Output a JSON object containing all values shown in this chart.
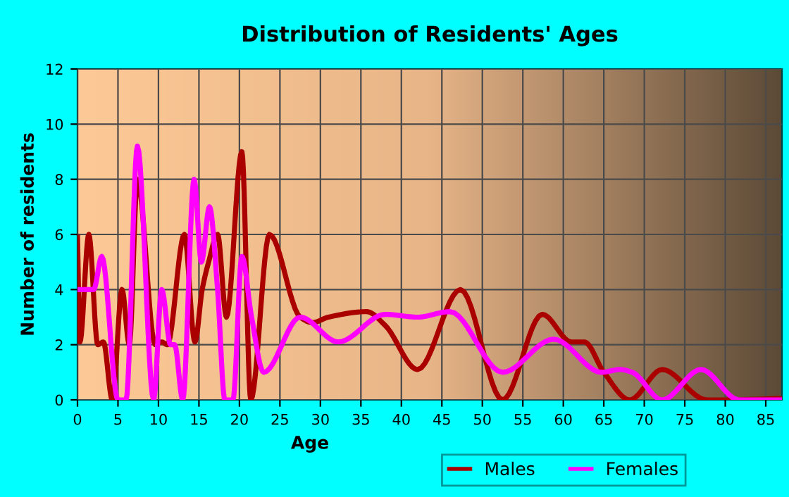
{
  "chart_data": {
    "type": "line",
    "title": "Distribution of Residents' Ages",
    "xlabel": "Age",
    "ylabel": "Number of residents",
    "xlim": [
      0,
      87
    ],
    "xticks": [
      0,
      5,
      10,
      15,
      20,
      25,
      30,
      35,
      40,
      45,
      50,
      55,
      60,
      65,
      70,
      75,
      80,
      85
    ],
    "ylim": [
      0,
      12
    ],
    "yticks": [
      0,
      2,
      4,
      6,
      8,
      10,
      12
    ],
    "grid": true,
    "legend": "bottom right",
    "series": [
      {
        "name": "Males",
        "color": "#aa0000",
        "x": [
          0,
          0.3,
          1.4,
          2.5,
          3.2,
          4.3,
          5.5,
          6.4,
          7.4,
          9.6,
          10.4,
          11.1,
          13.2,
          14.5,
          15.4,
          16.2,
          17.3,
          18.4,
          20.3,
          21.4,
          23.7,
          27.5,
          29,
          31,
          35.7,
          38,
          42,
          47.3,
          52.5,
          57.4,
          61,
          62.6,
          65,
          68.2,
          72.2,
          77.7,
          80,
          87
        ],
        "values": [
          5.9,
          2.1,
          6,
          2,
          2.1,
          0,
          4,
          2,
          8,
          2,
          2.1,
          2,
          6,
          2.1,
          4,
          5,
          6,
          3,
          9,
          0,
          6,
          3,
          2.8,
          3,
          3.2,
          2.7,
          1.1,
          4,
          0,
          3.1,
          2.1,
          2.1,
          1,
          0,
          1.1,
          0,
          0,
          0.05
        ]
      },
      {
        "name": "Females",
        "color": "#ff00ff",
        "x": [
          0,
          2,
          3,
          5,
          6,
          7.4,
          9.4,
          10.4,
          11.5,
          12,
          13,
          14.4,
          15.3,
          16.3,
          17.3,
          18.2,
          19.2,
          20.3,
          21.5,
          23,
          27.5,
          32.2,
          38,
          42,
          46,
          52.5,
          58.8,
          64.7,
          67,
          68.5,
          72.2,
          77,
          81.7,
          87
        ],
        "values": [
          4,
          4,
          5.2,
          0,
          0,
          9.2,
          0,
          4,
          2,
          2,
          0,
          8,
          5,
          7,
          4,
          0,
          0,
          5.2,
          3,
          1,
          3,
          2.1,
          3.1,
          3,
          3.2,
          1,
          2.2,
          1,
          1.1,
          1,
          0,
          1.1,
          0,
          0
        ]
      }
    ]
  }
}
